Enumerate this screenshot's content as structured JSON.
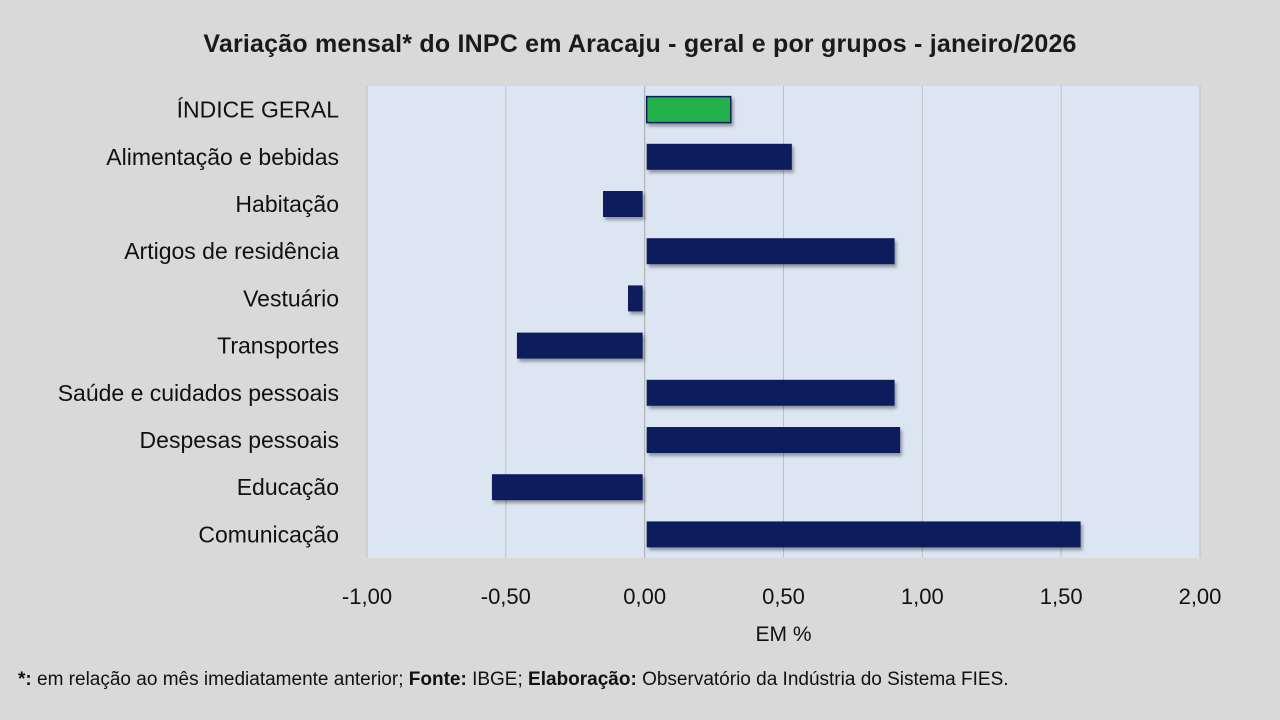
{
  "chart_data": {
    "type": "bar",
    "orientation": "horizontal",
    "title": "Variação  mensal*  do INPC em Aracaju  - geral e por grupos  - janeiro/2026",
    "xlabel": "EM %",
    "ylabel": "",
    "xlim": [
      -1.0,
      2.0
    ],
    "x_ticks": [
      "-1,00",
      "-0,50",
      "0,00",
      "0,50",
      "1,00",
      "1,50",
      "2,00"
    ],
    "x_tick_values": [
      -1.0,
      -0.5,
      0.0,
      0.5,
      1.0,
      1.5,
      2.0
    ],
    "grid": true,
    "categories": [
      "ÍNDICE GERAL",
      "Alimentação e bebidas",
      "Habitação",
      "Artigos de residência",
      "Vestuário",
      "Transportes",
      "Saúde e cuidados pessoais",
      "Despesas pessoais",
      "Educação",
      "Comunicação"
    ],
    "values": [
      0.31,
      0.53,
      -0.15,
      0.9,
      -0.06,
      -0.46,
      0.9,
      0.92,
      -0.55,
      1.57
    ],
    "highlight_index": 0,
    "colors": {
      "bar": "#0d1f5c",
      "highlight": "#22b14c",
      "plot_bg": "#dce6f2",
      "grid": "#c0c0c0"
    }
  },
  "footnote": {
    "star_label": "*:",
    "star_text": " em relação ao mês imediatamente  anterior; ",
    "source_label": "Fonte:",
    "source_text": " IBGE; ",
    "elab_label": "Elaboração:",
    "elab_text": " Observatório da Indústria do Sistema FIES."
  }
}
